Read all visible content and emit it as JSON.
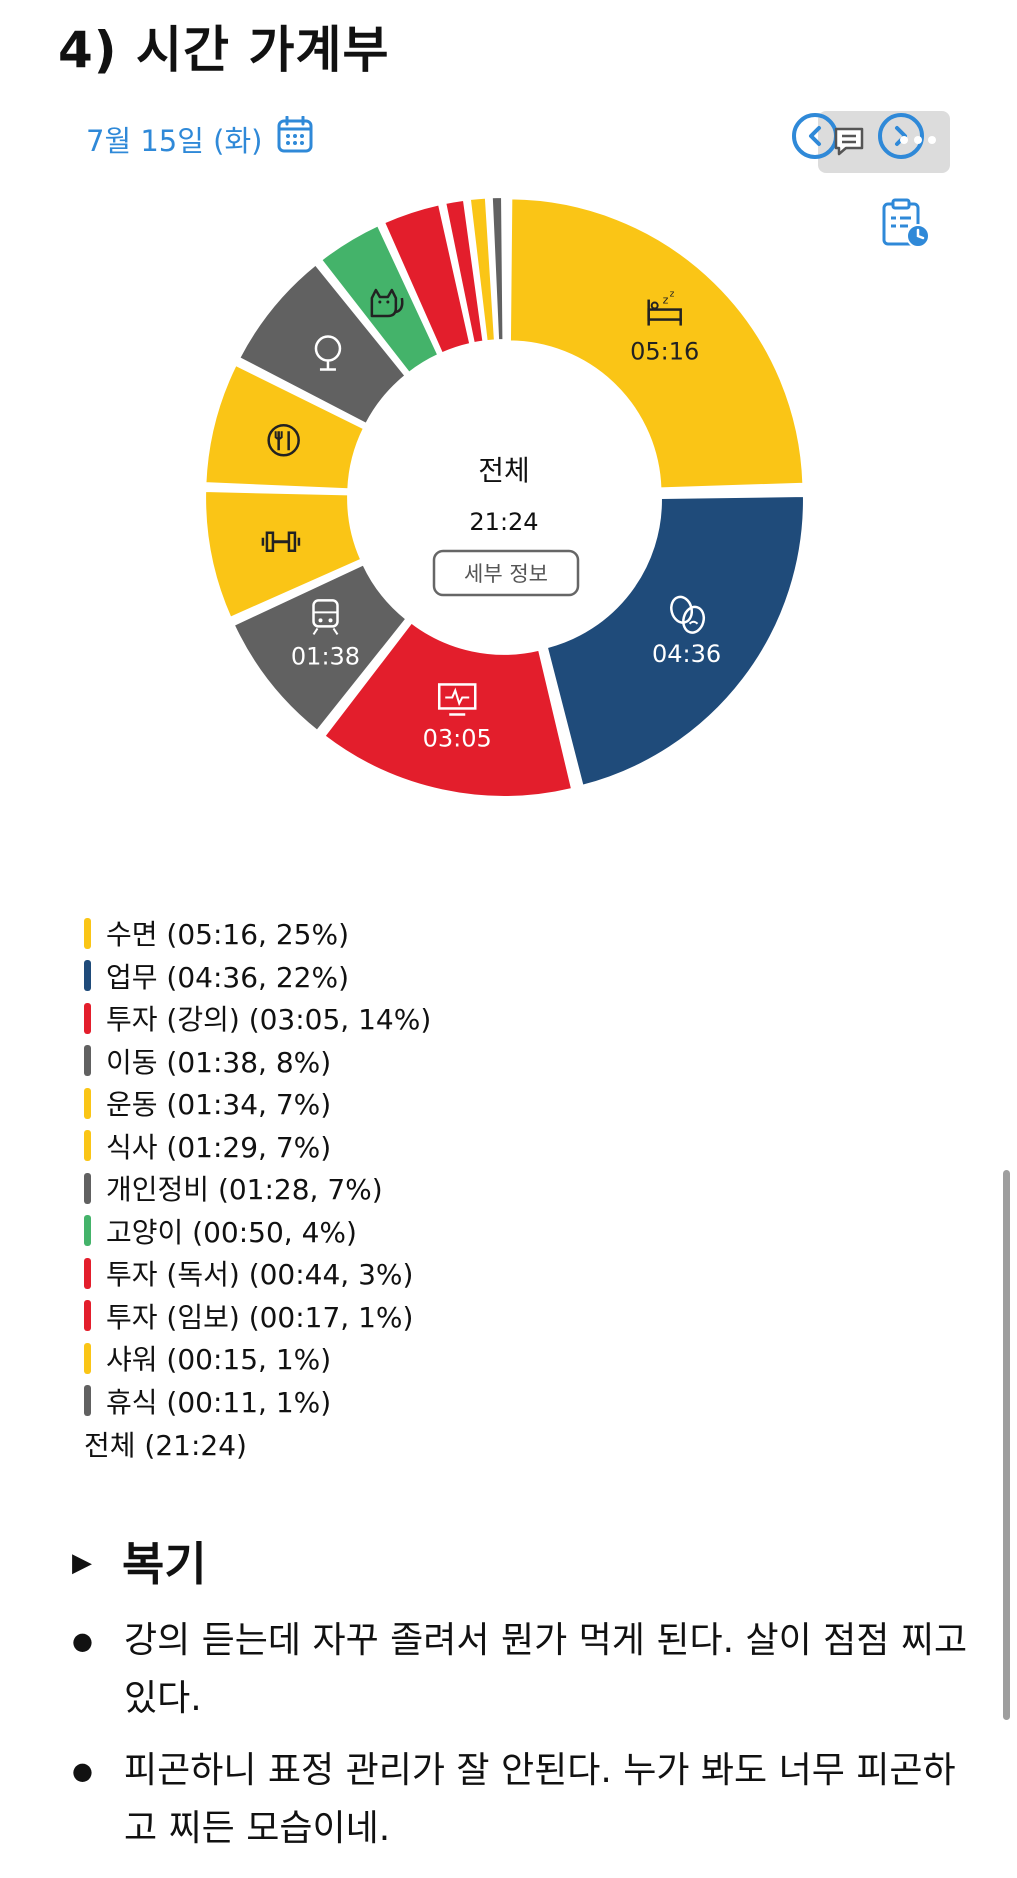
{
  "page": {
    "title": "4) 시간 가계부",
    "date": "7월 15일 (화)"
  },
  "colors": {
    "accent": "#2f89d8",
    "yellow": "#fac516",
    "navy": "#1f4b7a",
    "red": "#e31e2c",
    "gray": "#616161",
    "green": "#44b36a"
  },
  "icons": [
    "calendar-icon",
    "chevron-left-icon",
    "comment-icon",
    "chevron-right-icon",
    "more-icon",
    "clipboard-clock-icon",
    "bed-icon",
    "theater-masks-icon",
    "monitor-icon",
    "train-icon",
    "dumbbell-icon",
    "utensils-icon",
    "mirror-icon",
    "cat-icon"
  ],
  "chart_data": {
    "type": "pie",
    "center_label": "전체",
    "center_value": "21:24",
    "detail_button": "세부 정보",
    "slices": [
      {
        "name": "수면",
        "time": "05:16",
        "percent": 25,
        "color": "#fac516",
        "icon": "bed-icon",
        "label": "05:16"
      },
      {
        "name": "업무",
        "time": "04:36",
        "percent": 22,
        "color": "#1f4b7a",
        "icon": "theater-masks-icon",
        "label": "04:36"
      },
      {
        "name": "투자 (강의)",
        "time": "03:05",
        "percent": 14,
        "color": "#e31e2c",
        "icon": "monitor-icon",
        "label": "03:05"
      },
      {
        "name": "이동",
        "time": "01:38",
        "percent": 8,
        "color": "#616161",
        "icon": "train-icon",
        "label": "01:38"
      },
      {
        "name": "운동",
        "time": "01:34",
        "percent": 7,
        "color": "#fac516",
        "icon": "dumbbell-icon",
        "label": ""
      },
      {
        "name": "식사",
        "time": "01:29",
        "percent": 7,
        "color": "#fac516",
        "icon": "utensils-icon",
        "label": ""
      },
      {
        "name": "개인정비",
        "time": "01:28",
        "percent": 7,
        "color": "#616161",
        "icon": "mirror-icon",
        "label": ""
      },
      {
        "name": "고양이",
        "time": "00:50",
        "percent": 4,
        "color": "#44b36a",
        "icon": "cat-icon",
        "label": ""
      },
      {
        "name": "투자 (독서)",
        "time": "00:44",
        "percent": 3,
        "color": "#e31e2c",
        "icon": "",
        "label": ""
      },
      {
        "name": "투자 (임보)",
        "time": "00:17",
        "percent": 1,
        "color": "#e31e2c",
        "icon": "",
        "label": ""
      },
      {
        "name": "샤워",
        "time": "00:15",
        "percent": 1,
        "color": "#fac516",
        "icon": "",
        "label": ""
      },
      {
        "name": "휴식",
        "time": "00:11",
        "percent": 1,
        "color": "#616161",
        "icon": "",
        "label": ""
      }
    ]
  },
  "legend": {
    "items": [
      "수면 (05:16, 25%)",
      "업무 (04:36, 22%)",
      "투자 (강의) (03:05, 14%)",
      "이동 (01:38, 8%)",
      "운동 (01:34, 7%)",
      "식사 (01:29, 7%)",
      "개인정비 (01:28, 7%)",
      "고양이 (00:50, 4%)",
      "투자 (독서) (00:44, 3%)",
      "투자 (임보) (00:17, 1%)",
      "샤워 (00:15, 1%)",
      "휴식 (00:11, 1%)"
    ],
    "total": "전체 (21:24)"
  },
  "recap": {
    "title": "복기",
    "bullets": [
      "강의 듣는데 자꾸 졸려서 뭔가 먹게 된다. 살이 점점 찌고 있다.",
      "피곤하니 표정 관리가 잘 안된다. 누가 봐도 너무 피곤하고 찌든 모습이네."
    ]
  }
}
